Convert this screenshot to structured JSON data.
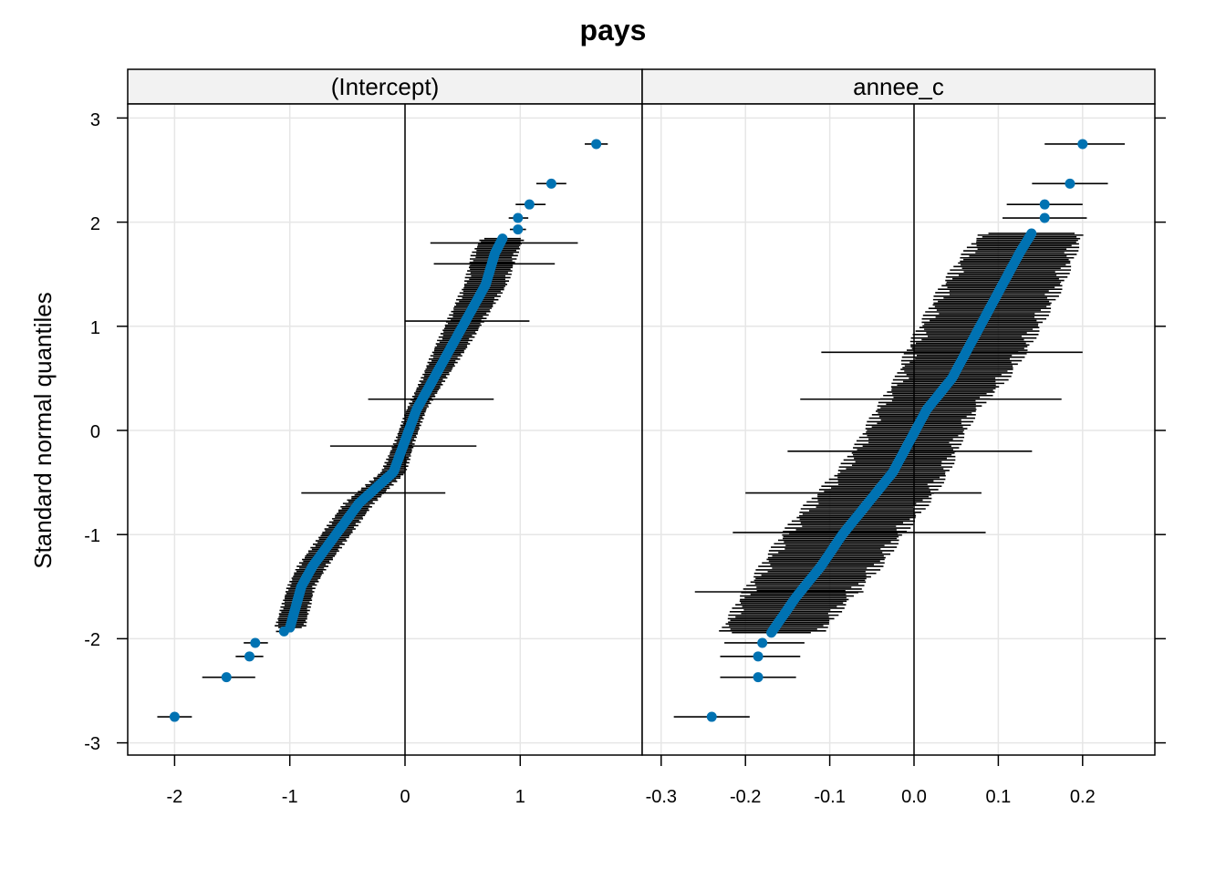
{
  "figure": {
    "title": "pays",
    "ylabel": "Standard normal quantiles",
    "shared_y_ticks": [
      "3",
      "2",
      "1",
      "0",
      "-1",
      "-2",
      "-3"
    ]
  },
  "chart_data": [
    {
      "type": "scatter",
      "variant": "qq-plot with horizontal interval bars",
      "panel_label": "(Intercept)",
      "xlabel": "",
      "ylabel": "Standard normal quantiles",
      "xlim": [
        -2.4,
        2.0
      ],
      "ylim": [
        -3.1,
        3.1
      ],
      "x_ticks": [
        -2,
        -1,
        0,
        1
      ],
      "x_tick_labels": [
        "-2",
        "-1",
        "0",
        "1"
      ],
      "y_ticks": [
        -3,
        -2,
        -1,
        0,
        1,
        2,
        3
      ],
      "reference_line_x": 0,
      "grid": true,
      "point_color": "#0072b2",
      "bar_color": "#000000",
      "labeled_points": [
        {
          "x": -2.0,
          "y": -2.75,
          "lo": -2.15,
          "hi": -1.85
        },
        {
          "x": -1.55,
          "y": -2.37,
          "lo": -1.76,
          "hi": -1.3
        },
        {
          "x": -1.35,
          "y": -2.17,
          "lo": -1.47,
          "hi": -1.23
        },
        {
          "x": -1.3,
          "y": -2.04,
          "lo": -1.4,
          "hi": -1.19
        },
        {
          "x": -1.05,
          "y": -1.93,
          "lo": -1.12,
          "hi": -0.98
        },
        {
          "x": 0.98,
          "y": 1.93,
          "lo": 0.91,
          "hi": 1.05
        },
        {
          "x": 0.98,
          "y": 2.04,
          "lo": 0.9,
          "hi": 1.07
        },
        {
          "x": 1.08,
          "y": 2.17,
          "lo": 0.96,
          "hi": 1.22
        },
        {
          "x": 1.27,
          "y": 2.37,
          "lo": 1.14,
          "hi": 1.4
        },
        {
          "x": 1.66,
          "y": 2.75,
          "lo": 1.56,
          "hi": 1.76
        }
      ],
      "body_profile": {
        "y": [
          -1.9,
          -1.5,
          -1.3,
          -1.0,
          -0.7,
          -0.4,
          -0.1,
          0.2,
          0.5,
          0.8,
          1.1,
          1.4,
          1.7,
          1.85
        ],
        "x": [
          -1.0,
          -0.9,
          -0.8,
          -0.6,
          -0.4,
          -0.1,
          0.0,
          0.1,
          0.25,
          0.4,
          0.55,
          0.7,
          0.78,
          0.85
        ],
        "half_width": [
          0.12,
          0.11,
          0.12,
          0.12,
          0.12,
          0.1,
          0.08,
          0.08,
          0.1,
          0.13,
          0.15,
          0.17,
          0.18,
          0.17
        ],
        "count": 230
      },
      "wide_bars": [
        {
          "y": 1.8,
          "lo": 0.22,
          "hi": 1.5
        },
        {
          "y": 1.6,
          "lo": 0.25,
          "hi": 1.3
        },
        {
          "y": 1.05,
          "lo": 0.0,
          "hi": 1.08
        },
        {
          "y": 0.3,
          "lo": -0.32,
          "hi": 0.77
        },
        {
          "y": -0.15,
          "lo": -0.65,
          "hi": 0.62
        },
        {
          "y": -0.6,
          "lo": -0.9,
          "hi": 0.35
        }
      ]
    },
    {
      "type": "scatter",
      "variant": "qq-plot with horizontal interval bars",
      "panel_label": "annee_c",
      "xlabel": "",
      "ylabel": "Standard normal quantiles",
      "xlim": [
        -0.31,
        0.285
      ],
      "ylim": [
        -3.1,
        3.1
      ],
      "x_ticks": [
        -0.3,
        -0.2,
        -0.1,
        0.0,
        0.1,
        0.2
      ],
      "x_tick_labels": [
        "-0.3",
        "-0.2",
        "-0.1",
        "0.0",
        "0.1",
        "0.2"
      ],
      "y_ticks": [
        -3,
        -2,
        -1,
        0,
        1,
        2,
        3
      ],
      "reference_line_x": 0,
      "grid": true,
      "point_color": "#0072b2",
      "bar_color": "#000000",
      "labeled_points": [
        {
          "x": -0.24,
          "y": -2.75,
          "lo": -0.285,
          "hi": -0.195
        },
        {
          "x": -0.185,
          "y": -2.37,
          "lo": -0.23,
          "hi": -0.14
        },
        {
          "x": -0.185,
          "y": -2.17,
          "lo": -0.23,
          "hi": -0.135
        },
        {
          "x": -0.18,
          "y": -2.04,
          "lo": -0.225,
          "hi": -0.13
        },
        {
          "x": 0.155,
          "y": 2.04,
          "lo": 0.105,
          "hi": 0.205
        },
        {
          "x": 0.155,
          "y": 2.17,
          "lo": 0.11,
          "hi": 0.2
        },
        {
          "x": 0.185,
          "y": 2.37,
          "lo": 0.14,
          "hi": 0.23
        },
        {
          "x": 0.2,
          "y": 2.75,
          "lo": 0.155,
          "hi": 0.25
        }
      ],
      "body_profile": {
        "y": [
          -1.95,
          -1.6,
          -1.3,
          -1.0,
          -0.7,
          -0.4,
          -0.1,
          0.2,
          0.5,
          0.8,
          1.1,
          1.4,
          1.7,
          1.9
        ],
        "x": [
          -0.17,
          -0.14,
          -0.11,
          -0.085,
          -0.055,
          -0.025,
          -0.005,
          0.015,
          0.045,
          0.065,
          0.085,
          0.105,
          0.125,
          0.14
        ],
        "half_width": [
          0.055,
          0.06,
          0.065,
          0.065,
          0.065,
          0.06,
          0.055,
          0.055,
          0.06,
          0.065,
          0.065,
          0.065,
          0.06,
          0.055
        ],
        "count": 230
      },
      "wide_bars": [
        {
          "y": 0.75,
          "lo": -0.11,
          "hi": 0.2
        },
        {
          "y": 0.3,
          "lo": -0.135,
          "hi": 0.175
        },
        {
          "y": -0.2,
          "lo": -0.15,
          "hi": 0.14
        },
        {
          "y": -0.6,
          "lo": -0.2,
          "hi": 0.08
        },
        {
          "y": -0.98,
          "lo": -0.215,
          "hi": 0.085
        },
        {
          "y": -1.55,
          "lo": -0.26,
          "hi": -0.06
        }
      ]
    }
  ]
}
